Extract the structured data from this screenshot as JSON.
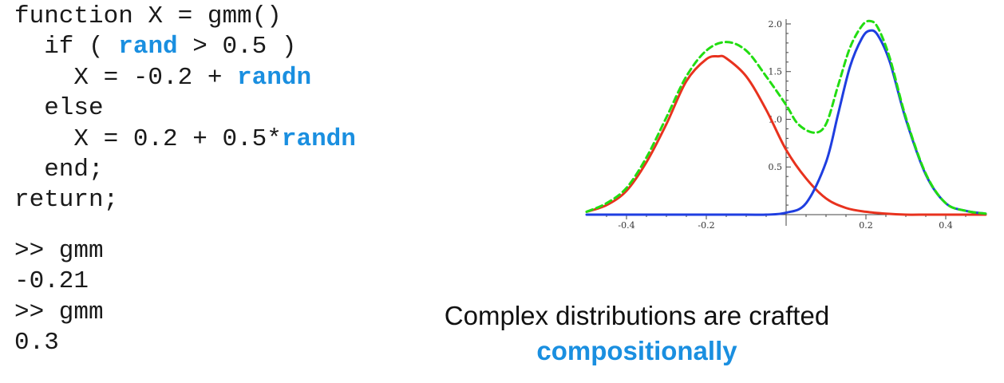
{
  "code": {
    "lines": [
      {
        "segments": [
          {
            "text": "function X = gmm()"
          }
        ]
      },
      {
        "segments": [
          {
            "text": "  if ( "
          },
          {
            "text": "rand",
            "keyword": true
          },
          {
            "text": " > 0.5 )"
          }
        ]
      },
      {
        "segments": [
          {
            "text": "    X = -0.2 + "
          },
          {
            "text": "randn",
            "keyword": true
          }
        ]
      },
      {
        "segments": [
          {
            "text": "  else"
          }
        ]
      },
      {
        "segments": [
          {
            "text": "    X = 0.2 + 0.5*"
          },
          {
            "text": "randn",
            "keyword": true
          }
        ]
      },
      {
        "segments": [
          {
            "text": "  end;"
          }
        ]
      },
      {
        "segments": [
          {
            "text": "return;"
          }
        ]
      }
    ],
    "console": [
      ">> gmm",
      "-0.21",
      ">> gmm",
      "0.3"
    ],
    "keyword_color": "#1a8fe0"
  },
  "caption": {
    "line1": "Complex distributions are crafted",
    "line2": "compositionally",
    "emphasis_color": "#1a8fe0"
  },
  "chart_data": {
    "type": "line",
    "title": "",
    "xlabel": "",
    "ylabel": "",
    "xlim": [
      -0.5,
      0.5
    ],
    "ylim": [
      0,
      2.05
    ],
    "x_ticks": [
      -0.4,
      -0.2,
      0.2,
      0.4
    ],
    "y_ticks": [
      0.5,
      1.0,
      1.5,
      2.0
    ],
    "x_tick_labels": [
      "-0.4",
      "-0.2",
      "0.2",
      "0.4"
    ],
    "y_tick_labels": [
      "0.5",
      "1.0",
      "1.5",
      "2.0"
    ],
    "grid": false,
    "series": [
      {
        "color": "#e8321e",
        "dashed": false,
        "x": [
          -0.5,
          -0.45,
          -0.4,
          -0.35,
          -0.3,
          -0.25,
          -0.2,
          -0.17,
          -0.15,
          -0.1,
          -0.05,
          0,
          0.05,
          0.1,
          0.15,
          0.2,
          0.25,
          0.3,
          0.35,
          0.4,
          0.45,
          0.5
        ],
        "y": [
          0.03,
          0.1,
          0.25,
          0.55,
          0.95,
          1.4,
          1.63,
          1.66,
          1.64,
          1.45,
          1.1,
          0.68,
          0.38,
          0.17,
          0.07,
          0.03,
          0.01,
          0.0,
          0.0,
          0.0,
          0.0,
          0.0
        ]
      },
      {
        "color": "#1f3ee0",
        "dashed": false,
        "x": [
          -0.5,
          -0.4,
          -0.3,
          -0.2,
          -0.1,
          -0.05,
          0,
          0.05,
          0.1,
          0.13,
          0.16,
          0.19,
          0.21,
          0.23,
          0.26,
          0.3,
          0.35,
          0.4,
          0.45,
          0.5
        ],
        "y": [
          0.0,
          0.0,
          0.0,
          0.0,
          0.0,
          0.0,
          0.02,
          0.12,
          0.55,
          1.05,
          1.55,
          1.85,
          1.93,
          1.88,
          1.6,
          1.0,
          0.42,
          0.12,
          0.04,
          0.01
        ]
      },
      {
        "color": "#22dd11",
        "dashed": true,
        "x": [
          -0.5,
          -0.45,
          -0.4,
          -0.35,
          -0.3,
          -0.25,
          -0.2,
          -0.15,
          -0.1,
          -0.05,
          0,
          0.03,
          0.07,
          0.1,
          0.13,
          0.16,
          0.19,
          0.21,
          0.23,
          0.26,
          0.3,
          0.35,
          0.4,
          0.45,
          0.5
        ],
        "y": [
          0.03,
          0.12,
          0.28,
          0.6,
          1.02,
          1.45,
          1.72,
          1.81,
          1.72,
          1.45,
          1.15,
          0.95,
          0.86,
          0.95,
          1.35,
          1.75,
          1.98,
          2.03,
          1.96,
          1.64,
          1.02,
          0.43,
          0.12,
          0.04,
          0.01
        ]
      }
    ]
  }
}
